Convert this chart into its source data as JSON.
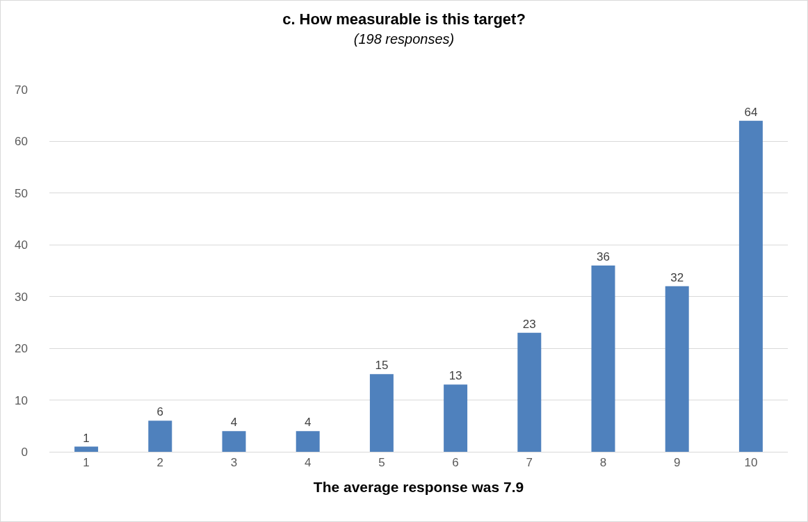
{
  "chart_data": {
    "type": "bar",
    "title": "c. How measurable is this target?",
    "subtitle": "(198 responses)",
    "xlabel": "The average response was 7.9",
    "categories": [
      "1",
      "2",
      "3",
      "4",
      "5",
      "6",
      "7",
      "8",
      "9",
      "10"
    ],
    "values": [
      1,
      6,
      4,
      4,
      15,
      13,
      23,
      36,
      32,
      64
    ],
    "color": "#4f81bd",
    "ylim": [
      0,
      70
    ],
    "yticks": [
      0,
      10,
      20,
      30,
      40,
      50,
      60,
      70
    ],
    "grid": "y",
    "data_labels": true
  }
}
